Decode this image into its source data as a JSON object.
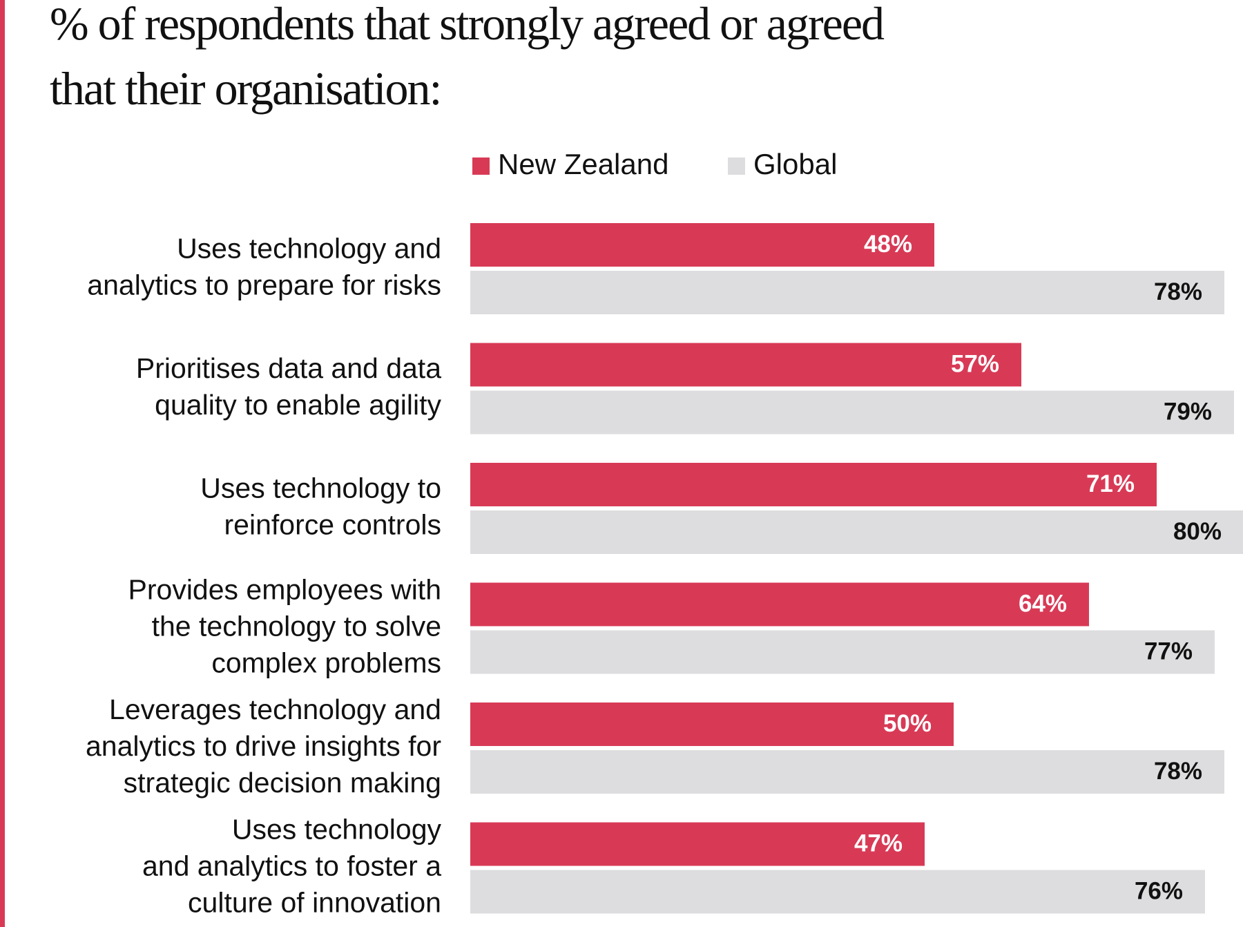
{
  "chart_data": {
    "type": "hbar",
    "title": "% of respondents that strongly agreed or agreed\nthat their organisation:",
    "categories": [
      "Uses technology and\nanalytics to prepare for risks",
      "Prioritises data and data\nquality to enable agility",
      "Uses technology to\nreinforce controls",
      "Provides employees with\nthe technology to solve\ncomplex problems",
      "Leverages technology and\nanalytics to drive insights for\nstrategic decision making",
      "Uses technology\nand analytics to foster a\nculture of innovation"
    ],
    "series": [
      {
        "name": "New Zealand",
        "color": "#d83a56",
        "label_color": "#ffffff",
        "values": [
          48,
          57,
          71,
          64,
          50,
          47
        ],
        "value_labels": [
          "48%",
          "57%",
          "71%",
          "64%",
          "50%",
          "47%"
        ]
      },
      {
        "name": "Global",
        "color": "#dddddf",
        "label_color": "#111111",
        "values": [
          78,
          79,
          80,
          77,
          78,
          76
        ],
        "value_labels": [
          "78%",
          "79%",
          "80%",
          "77%",
          "78%",
          "76%"
        ]
      }
    ]
  }
}
